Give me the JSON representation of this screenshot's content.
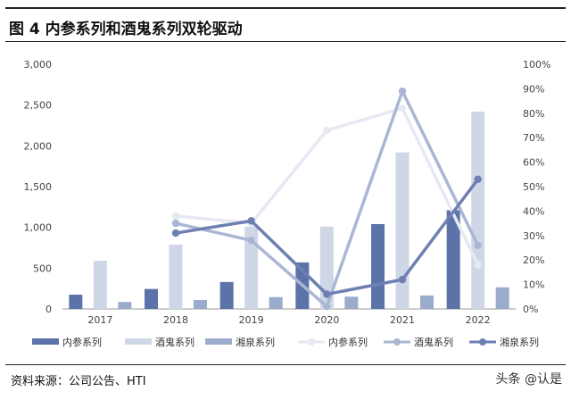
{
  "header": {
    "title": "图 4 内参系列和酒鬼系列双轮驱动"
  },
  "footer": {
    "source": "资料来源：公司公告、HTI",
    "watermark": "头条 @认是"
  },
  "chart_data": {
    "type": "bar",
    "categories": [
      "2017",
      "2018",
      "2019",
      "2020",
      "2021",
      "2022"
    ],
    "y_left": {
      "ticks": [
        "0",
        "500",
        "1,000",
        "1,500",
        "2,000",
        "2,500",
        "3,000"
      ],
      "min": 0,
      "max": 3000
    },
    "y_right": {
      "ticks": [
        "0%",
        "10%",
        "20%",
        "30%",
        "40%",
        "50%",
        "60%",
        "70%",
        "80%",
        "90%",
        "100%"
      ],
      "min": 0,
      "max": 100
    },
    "series": [
      {
        "name": "内参系列",
        "kind": "bar",
        "axis": "left",
        "color": "#5b73a8",
        "values": [
          175,
          245,
          330,
          570,
          1040,
          1210
        ]
      },
      {
        "name": "酒鬼系列",
        "kind": "bar",
        "axis": "left",
        "color": "#cfd7e7",
        "values": [
          590,
          790,
          1010,
          1010,
          1920,
          2420
        ]
      },
      {
        "name": "湘泉系列",
        "kind": "bar",
        "axis": "left",
        "color": "#9aabcb",
        "values": [
          85,
          110,
          145,
          150,
          165,
          265
        ]
      },
      {
        "name": "内参系列",
        "kind": "line",
        "axis": "right",
        "color": "#e6e9f3",
        "values": [
          null,
          38,
          35,
          73,
          82,
          18
        ]
      },
      {
        "name": "酒鬼系列",
        "kind": "line",
        "axis": "right",
        "color": "#aab6d3",
        "values": [
          null,
          35,
          28,
          1,
          89,
          26
        ]
      },
      {
        "name": "湘泉系列",
        "kind": "line",
        "axis": "right",
        "color": "#6e80b2",
        "values": [
          null,
          31,
          36,
          6,
          12,
          53
        ]
      }
    ],
    "grid": false,
    "legend_position": "bottom"
  }
}
